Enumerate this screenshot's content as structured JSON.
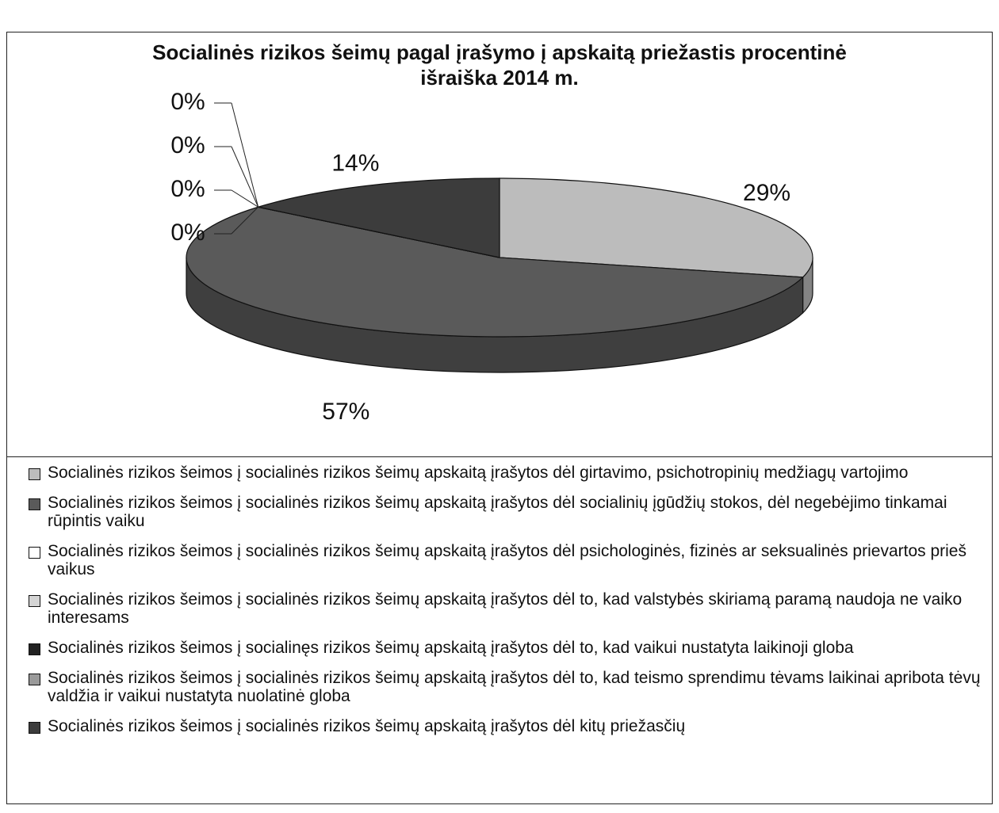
{
  "chart_data": {
    "type": "pie",
    "title": "Socialinės rizikos šeimų pagal įrašymo į apskaitą priežastis procentinė išraiška 2014 m.",
    "categories": [
      "Socialinės rizikos šeimos į socialinės rizikos šeimų apskaitą įrašytos dėl girtavimo, psichotropinių medžiagų vartojimo",
      "Socialinės rizikos šeimos į socialinės rizikos šeimų apskaitą įrašytos dėl socialinių įgūdžių stokos, dėl negebėjimo tinkamai rūpintis vaiku",
      "Socialinės rizikos šeimos į socialinės rizikos šeimų apskaitą įrašytos dėl psichologinės, fizinės ar seksualinės prievartos prieš vaikus",
      "Socialinės rizikos šeimos į socialinės rizikos šeimų apskaitą įrašytos dėl to, kad valstybės skiriamą paramą naudoja ne vaiko interesams",
      "Socialinės rizikos šeimos į socialinęs rizikos šeimų apskaitą įrašytos dėl to, kad vaikui nustatyta laikinoji globa",
      "Socialinės rizikos šeimos į socialinės rizikos šeimų apskaitą įrašytos dėl to, kad teismo sprendimu tėvams laikinai apribota tėvų valdžia ir vaikui nustatyta nuolatinė globa",
      "Socialinės rizikos šeimos į socialinės rizikos šeimų apskaitą įrašytos dėl kitų priežasčių"
    ],
    "values": [
      29,
      57,
      0,
      0,
      0,
      0,
      14
    ],
    "value_labels": [
      "29%",
      "57%",
      "0%",
      "0%",
      "0%",
      "0%",
      "14%"
    ],
    "colors": [
      "#bcbcbc",
      "#5a5a5a",
      "#ffffff",
      "#d4d4d4",
      "#222222",
      "#9a9a9a",
      "#3c3c3c"
    ]
  }
}
